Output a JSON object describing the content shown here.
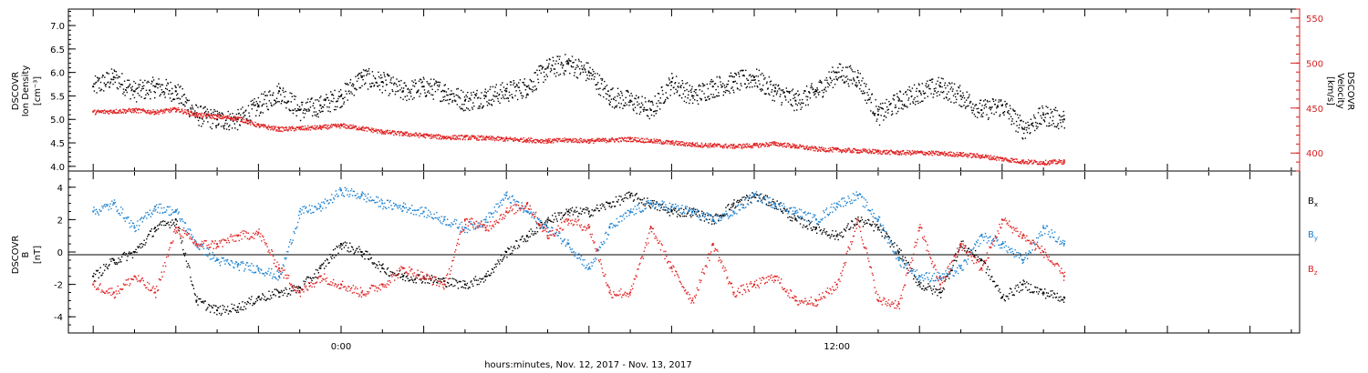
{
  "chart_data": [
    {
      "type": "scatter",
      "panel": "top",
      "ylabel_left": [
        "DSCOVR",
        "Ion Density",
        "[cm⁻³]"
      ],
      "ylabel_right": [
        "DSCOVR",
        "Velocity",
        "[km/s]"
      ],
      "ylim_left": [
        3.9,
        7.35
      ],
      "ylim_right": [
        380,
        560
      ],
      "yticks_left": [
        "4.0",
        "4.5",
        "5.0",
        "5.5",
        "6.0",
        "6.5",
        "7.0"
      ],
      "yticks_right": [
        "400",
        "450",
        "500",
        "550"
      ],
      "colors": {
        "density": "#000000",
        "velocity": "#e02020"
      },
      "series": [
        {
          "name": "",
          "axis": "left",
          "x_hours": [
            -6.0,
            -5.5,
            -5.0,
            -4.5,
            -4.0,
            -3.5,
            -3.0,
            -2.5,
            -2.0,
            -1.5,
            -1.0,
            -0.5,
            0.0,
            0.5,
            1.0,
            1.5,
            2.0,
            2.5,
            3.0,
            3.5,
            4.0,
            4.5,
            5.0,
            5.5,
            6.0,
            6.5,
            7.0,
            7.5,
            8.0,
            8.5,
            9.0,
            9.5,
            10.0,
            10.5,
            11.0,
            11.5,
            12.0,
            12.5,
            13.0,
            13.5,
            14.0,
            14.5,
            15.0,
            15.5,
            16.0,
            16.5,
            17.0,
            17.5
          ],
          "values": [
            5.7,
            5.9,
            5.6,
            5.7,
            5.6,
            5.1,
            5.0,
            5.0,
            5.3,
            5.6,
            5.2,
            5.3,
            5.5,
            5.9,
            5.8,
            5.6,
            5.7,
            5.6,
            5.4,
            5.5,
            5.6,
            5.7,
            6.1,
            6.2,
            6.0,
            5.5,
            5.4,
            5.2,
            5.8,
            5.5,
            5.7,
            5.8,
            5.9,
            5.6,
            5.4,
            5.6,
            6.0,
            5.9,
            5.1,
            5.4,
            5.6,
            5.7,
            5.5,
            5.2,
            5.3,
            4.8,
            5.1,
            5.0
          ]
        },
        {
          "name": "",
          "axis": "right",
          "x_hours": [
            -6.0,
            -5.5,
            -5.0,
            -4.5,
            -4.0,
            -3.5,
            -3.0,
            -2.5,
            -2.0,
            -1.5,
            -1.0,
            -0.5,
            0.0,
            0.5,
            1.0,
            1.5,
            2.0,
            2.5,
            3.0,
            3.5,
            4.0,
            4.5,
            5.0,
            5.5,
            6.0,
            6.5,
            7.0,
            7.5,
            8.0,
            8.5,
            9.0,
            9.5,
            10.0,
            10.5,
            11.0,
            11.5,
            12.0,
            12.5,
            13.0,
            13.5,
            14.0,
            14.5,
            15.0,
            15.5,
            16.0,
            16.5,
            17.0,
            17.5
          ],
          "values": [
            446,
            447,
            448,
            446,
            449,
            443,
            441,
            439,
            431,
            427,
            428,
            429,
            431,
            428,
            424,
            422,
            420,
            418,
            418,
            417,
            416,
            415,
            414,
            415,
            414,
            415,
            416,
            414,
            412,
            410,
            409,
            408,
            409,
            411,
            408,
            405,
            404,
            403,
            402,
            401,
            401,
            400,
            399,
            397,
            394,
            391,
            390,
            391
          ]
        }
      ]
    },
    {
      "type": "scatter",
      "panel": "bottom",
      "ylabel_left": [
        "DSCOVR",
        "B",
        "[nT]"
      ],
      "ylim": [
        -5,
        5
      ],
      "yticks": [
        "-4",
        "-2",
        "0",
        "2",
        "4"
      ],
      "xlabel": "hours:minutes, Nov. 12, 2017 - Nov. 13, 2017",
      "xticks": [
        {
          "hour": 0,
          "label": "0:00"
        },
        {
          "hour": 12,
          "label": "12:00"
        }
      ],
      "xlim_hours": [
        -6.6,
        23.2
      ],
      "series": [
        {
          "name": "Bx",
          "sub": "x",
          "color": "#000000",
          "x_hours": [
            -6.0,
            -5.5,
            -5.0,
            -4.5,
            -4.0,
            -3.5,
            -3.0,
            -2.5,
            -2.0,
            -1.5,
            -1.0,
            -0.5,
            0.0,
            0.5,
            1.0,
            1.5,
            2.0,
            2.5,
            3.0,
            3.5,
            4.0,
            4.5,
            5.0,
            5.5,
            6.0,
            6.5,
            7.0,
            7.5,
            8.0,
            8.5,
            9.0,
            9.5,
            10.0,
            10.5,
            11.0,
            11.5,
            12.0,
            12.5,
            13.0,
            13.5,
            14.0,
            14.5,
            15.0,
            15.5,
            16.0,
            16.5,
            17.0,
            17.5
          ],
          "values": [
            -1.5,
            -0.5,
            0.0,
            1.5,
            2.0,
            -3.0,
            -3.6,
            -3.4,
            -2.8,
            -2.5,
            -2.2,
            -1.0,
            0.5,
            0.0,
            -1.0,
            -1.5,
            -1.6,
            -1.8,
            -2.0,
            -1.5,
            0.0,
            1.0,
            2.0,
            2.5,
            2.5,
            3.0,
            3.5,
            3.0,
            2.5,
            2.5,
            2.0,
            3.0,
            3.5,
            3.0,
            2.0,
            1.5,
            1.0,
            2.0,
            1.5,
            0.0,
            -2.0,
            -2.5,
            0.5,
            -0.5,
            -2.8,
            -2.0,
            -2.5,
            -2.8
          ]
        },
        {
          "name": "By",
          "sub": "y",
          "color": "#1a80d0",
          "x_hours": [
            -6.0,
            -5.5,
            -5.0,
            -4.5,
            -4.0,
            -3.5,
            -3.0,
            -2.5,
            -2.0,
            -1.5,
            -1.0,
            -0.5,
            0.0,
            0.5,
            1.0,
            1.5,
            2.0,
            2.5,
            3.0,
            3.5,
            4.0,
            4.5,
            5.0,
            5.5,
            6.0,
            6.5,
            7.0,
            7.5,
            8.0,
            8.5,
            9.0,
            9.5,
            10.0,
            10.5,
            11.0,
            11.5,
            12.0,
            12.5,
            13.0,
            13.5,
            14.0,
            14.5,
            15.0,
            15.5,
            16.0,
            16.5,
            17.0,
            17.5
          ],
          "values": [
            2.5,
            3.0,
            1.5,
            2.8,
            2.5,
            0.5,
            -0.5,
            -0.8,
            -1.0,
            -1.5,
            2.5,
            2.8,
            3.8,
            3.5,
            3.0,
            2.8,
            2.5,
            2.0,
            1.5,
            2.0,
            3.5,
            2.5,
            1.5,
            0.5,
            -1.0,
            1.5,
            2.5,
            3.0,
            2.8,
            2.5,
            2.0,
            2.5,
            3.5,
            3.0,
            2.5,
            2.0,
            3.0,
            3.5,
            2.0,
            -0.5,
            -1.5,
            -1.5,
            -1.0,
            1.0,
            0.5,
            -0.5,
            1.5,
            0.5
          ]
        },
        {
          "name": "Bz",
          "sub": "z",
          "color": "#e02020",
          "x_hours": [
            -6.0,
            -5.5,
            -5.0,
            -4.5,
            -4.0,
            -3.5,
            -3.0,
            -2.5,
            -2.0,
            -1.5,
            -1.0,
            -0.5,
            0.0,
            0.5,
            1.0,
            1.5,
            2.0,
            2.5,
            3.0,
            3.5,
            4.0,
            4.5,
            5.0,
            5.5,
            6.0,
            6.5,
            7.0,
            7.5,
            8.0,
            8.5,
            9.0,
            9.5,
            10.0,
            10.5,
            11.0,
            11.5,
            12.0,
            12.5,
            13.0,
            13.5,
            14.0,
            14.5,
            15.0,
            15.5,
            16.0,
            16.5,
            17.0,
            17.5
          ],
          "values": [
            -2.0,
            -2.5,
            -1.5,
            -2.5,
            1.5,
            0.5,
            0.5,
            1.0,
            1.2,
            -1.0,
            -2.5,
            -1.5,
            -2.0,
            -2.5,
            -2.0,
            -1.0,
            -1.5,
            -2.0,
            2.0,
            1.5,
            2.5,
            3.0,
            1.0,
            2.0,
            1.5,
            -2.5,
            -2.5,
            1.5,
            -1.0,
            -3.0,
            0.5,
            -2.5,
            -2.0,
            -1.5,
            -3.0,
            -3.0,
            -2.0,
            2.0,
            -3.0,
            -3.2,
            1.5,
            -2.0,
            0.5,
            -1.0,
            2.0,
            1.0,
            0.0,
            -1.5
          ]
        }
      ]
    }
  ]
}
